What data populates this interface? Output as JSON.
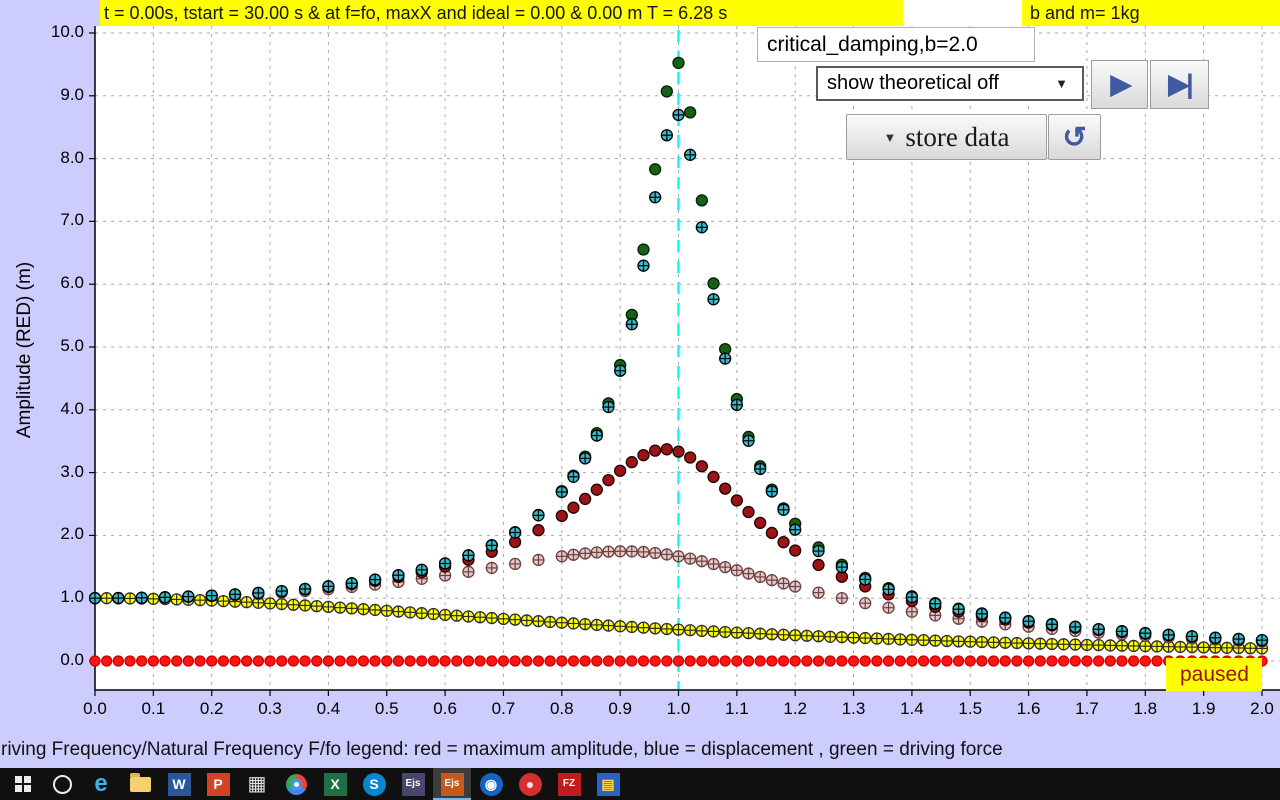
{
  "app": {
    "title_bar_left": "t = 0.00s, tstart = 30.00 s & at f=fo, maxX and ideal = 0.00 & 0.00 m T = 6.28 s",
    "title_bar_right": "b and m= 1kg",
    "run_label": "critical_damping,b=2.0"
  },
  "controls": {
    "dropdown_value": "show theoretical off",
    "dropdown_arrow_icon": "▼",
    "play_icon": "▶",
    "step_icon": "▶|",
    "store_label": "store data",
    "store_arrow_icon": "▼",
    "undo_icon": "↺",
    "paused_label": "paused"
  },
  "chart": {
    "ylabel": "Amplitude (RED) (m)",
    "legend_text": "riving Frequency/Natural Frequency F/fo legend: red = maximum amplitude, blue = displacement , green = driving force",
    "y_ticks": [
      "0.0",
      "1.0",
      "2.0",
      "3.0",
      "4.0",
      "5.0",
      "6.0",
      "7.0",
      "8.0",
      "9.0",
      "10.0"
    ],
    "x_ticks": [
      "0.0",
      "0.1",
      "0.2",
      "0.3",
      "0.4",
      "0.5",
      "0.6",
      "0.7",
      "0.8",
      "0.9",
      "1.0",
      "1.1",
      "1.2",
      "1.3",
      "1.4",
      "1.5",
      "1.6",
      "1.7",
      "1.8",
      "1.9",
      "2.0"
    ]
  },
  "chart_data": {
    "type": "scatter",
    "xlabel": "Driving Frequency/Natural Frequency F/fo",
    "ylabel": "Amplitude (RED) (m)",
    "xlim": [
      0,
      2.0
    ],
    "ylim": [
      0,
      10.0
    ],
    "x_tick_step": 0.1,
    "y_tick_step": 1.0,
    "grid": "dashed",
    "resonance_marker_x": 1.0,
    "reference_line_color": "#00ffff",
    "x_peak_grid": [
      0,
      0.04,
      0.08,
      0.12,
      0.16,
      0.2,
      0.24,
      0.28,
      0.32,
      0.36,
      0.4,
      0.44,
      0.48,
      0.52,
      0.56,
      0.6,
      0.64,
      0.68,
      0.72,
      0.76,
      0.8,
      0.82,
      0.84,
      0.86,
      0.88,
      0.9,
      0.92,
      0.94,
      0.96,
      0.98,
      1,
      1.02,
      1.04,
      1.06,
      1.08,
      1.1,
      1.12,
      1.14,
      1.16,
      1.18,
      1.2,
      1.24,
      1.28,
      1.32,
      1.36,
      1.4,
      1.44,
      1.48,
      1.52,
      1.56,
      1.6,
      1.64,
      1.68,
      1.72,
      1.76,
      1.8,
      1.84,
      1.88,
      1.92,
      1.96,
      2
    ],
    "series": [
      {
        "id": "yellow",
        "label": "stored amplitude curve (critical damping b=2.0)",
        "marker": "circle-cross",
        "fill": "#ffff00",
        "stroke": "#2d2d2d",
        "radius": 5.5,
        "x_start": 0,
        "x_step": 0.02,
        "count": 101,
        "y": [
          1.0,
          1.0,
          0.998,
          0.996,
          0.994,
          0.99,
          0.986,
          0.981,
          0.975,
          0.969,
          0.962,
          0.954,
          0.946,
          0.937,
          0.927,
          0.917,
          0.907,
          0.896,
          0.885,
          0.874,
          0.862,
          0.85,
          0.838,
          0.825,
          0.813,
          0.8,
          0.787,
          0.774,
          0.761,
          0.748,
          0.735,
          0.722,
          0.709,
          0.697,
          0.684,
          0.671,
          0.659,
          0.646,
          0.634,
          0.622,
          0.61,
          0.598,
          0.586,
          0.575,
          0.564,
          0.552,
          0.542,
          0.531,
          0.52,
          0.51,
          0.5,
          0.49,
          0.48,
          0.471,
          0.462,
          0.452,
          0.444,
          0.435,
          0.426,
          0.418,
          0.41,
          0.402,
          0.394,
          0.386,
          0.379,
          0.372,
          0.365,
          0.358,
          0.351,
          0.344,
          0.338,
          0.332,
          0.325,
          0.319,
          0.313,
          0.308,
          0.302,
          0.297,
          0.291,
          0.286,
          0.281,
          0.276,
          0.271,
          0.266,
          0.262,
          0.257,
          0.253,
          0.248,
          0.244,
          0.24,
          0.236,
          0.232,
          0.228,
          0.224,
          0.221,
          0.217,
          0.213,
          0.21,
          0.207,
          0.203,
          0.2
        ]
      },
      {
        "id": "plum",
        "label": "stored amplitude curve (b=0.6)",
        "marker": "circle-cross",
        "fill": "#e3caca",
        "stroke": "#6d4040",
        "radius": 5.5,
        "x_ref": "x_peak_grid",
        "y": [
          1.0,
          1.001,
          1.005,
          1.012,
          1.021,
          1.034,
          1.049,
          1.067,
          1.089,
          1.115,
          1.145,
          1.179,
          1.217,
          1.26,
          1.309,
          1.362,
          1.42,
          1.482,
          1.546,
          1.609,
          1.667,
          1.692,
          1.713,
          1.73,
          1.742,
          1.747,
          1.745,
          1.737,
          1.72,
          1.697,
          1.667,
          1.63,
          1.589,
          1.544,
          1.495,
          1.444,
          1.392,
          1.339,
          1.287,
          1.235,
          1.185,
          1.089,
          1.001,
          0.921,
          0.849,
          0.784,
          0.726,
          0.673,
          0.626,
          0.584,
          0.546,
          0.511,
          0.48,
          0.452,
          0.426,
          0.402,
          0.38,
          0.36,
          0.342,
          0.325,
          0.31
        ]
      },
      {
        "id": "darkred",
        "label": "stored amplitude curve (b=0.3)",
        "marker": "dot",
        "fill": "#9a1515",
        "stroke": "#240000",
        "radius": 5.5,
        "x_ref": "x_peak_grid",
        "y": [
          1.0,
          1.002,
          1.006,
          1.014,
          1.025,
          1.04,
          1.058,
          1.081,
          1.108,
          1.14,
          1.179,
          1.224,
          1.277,
          1.34,
          1.415,
          1.504,
          1.611,
          1.739,
          1.895,
          2.083,
          2.311,
          2.441,
          2.581,
          2.728,
          2.88,
          3.029,
          3.166,
          3.278,
          3.35,
          3.371,
          3.333,
          3.24,
          3.101,
          2.931,
          2.745,
          2.557,
          2.373,
          2.199,
          2.039,
          1.892,
          1.759,
          1.53,
          1.342,
          1.188,
          1.061,
          0.954,
          0.864,
          0.787,
          0.721,
          0.663,
          0.613,
          0.568,
          0.529,
          0.494,
          0.462,
          0.434,
          0.408,
          0.385,
          0.364,
          0.345,
          0.327
        ]
      },
      {
        "id": "green",
        "label": "driving force (green)",
        "marker": "dot",
        "fill": "#176117",
        "stroke": "#041f04",
        "radius": 5.5,
        "x_ref": "x_peak_grid",
        "y": [
          1.0,
          1.002,
          1.006,
          1.015,
          1.026,
          1.041,
          1.061,
          1.085,
          1.113,
          1.148,
          1.189,
          1.238,
          1.297,
          1.367,
          1.452,
          1.555,
          1.683,
          1.844,
          2.051,
          2.326,
          2.705,
          2.952,
          3.254,
          3.628,
          4.102,
          4.712,
          5.511,
          6.553,
          7.83,
          9.07,
          9.524,
          8.736,
          7.335,
          6.012,
          4.966,
          4.172,
          3.568,
          3.1,
          2.729,
          2.43,
          2.185,
          1.808,
          1.533,
          1.324,
          1.161,
          1.03,
          0.922,
          0.833,
          0.758,
          0.693,
          0.637,
          0.589,
          0.546,
          0.508,
          0.475,
          0.445,
          0.418,
          0.393,
          0.371,
          0.351,
          0.333
        ]
      },
      {
        "id": "cyan",
        "label": "displacement (blue)",
        "marker": "circle-cross",
        "fill": "#38bccc",
        "stroke": "#000000",
        "radius": 5.5,
        "x_ref": "x_peak_grid",
        "y": [
          1.0,
          1.002,
          1.006,
          1.014,
          1.026,
          1.041,
          1.061,
          1.084,
          1.113,
          1.147,
          1.189,
          1.238,
          1.296,
          1.366,
          1.451,
          1.553,
          1.681,
          1.841,
          2.046,
          2.32,
          2.691,
          2.933,
          3.227,
          3.59,
          4.044,
          4.622,
          5.362,
          6.295,
          7.384,
          8.372,
          8.696,
          8.06,
          6.906,
          5.76,
          4.816,
          4.079,
          3.507,
          3.058,
          2.699,
          2.408,
          2.092,
          1.751,
          1.495,
          1.298,
          1.142,
          1.016,
          0.912,
          0.825,
          0.751,
          0.688,
          0.633,
          0.585,
          0.543,
          0.506,
          0.473,
          0.443,
          0.416,
          0.392,
          0.37,
          0.35,
          0.332
        ]
      },
      {
        "id": "red",
        "label": "maximum amplitude (red, current run t=0)",
        "marker": "dot",
        "fill": "#ff1414",
        "stroke": "#cc0000",
        "radius": 5,
        "x_start": 0,
        "x_step": 0.02,
        "count": 101,
        "y_const": 0
      }
    ]
  },
  "taskbar": {
    "items": [
      {
        "name": "start-button",
        "shape": "win"
      },
      {
        "name": "search-button",
        "shape": "ring"
      },
      {
        "name": "edge-browser",
        "glyph": "e",
        "fg": "#41b0e8",
        "size": 24,
        "bold": true
      },
      {
        "name": "file-explorer",
        "shape": "folder"
      },
      {
        "name": "word-app",
        "glyph": "W",
        "bg": "#2b579a"
      },
      {
        "name": "powerpoint-app",
        "glyph": "P",
        "bg": "#d04423"
      },
      {
        "name": "apps-grid",
        "glyph": "▦",
        "fg": "#e0e0e0",
        "size": 20
      },
      {
        "name": "chrome-browser",
        "shape": "chrome"
      },
      {
        "name": "excel-app",
        "glyph": "X",
        "bg": "#1e7145"
      },
      {
        "name": "skype-app",
        "glyph": "S",
        "bg": "#0b86d0",
        "round": true
      },
      {
        "name": "ejs-console",
        "glyph": "Ejs",
        "bg": "#47476b",
        "small": true
      },
      {
        "name": "ejs-simulation",
        "glyph": "Ejs",
        "bg": "#c4591c",
        "small": true,
        "active": true
      },
      {
        "name": "media-app",
        "glyph": "◉",
        "bg": "#1565c0",
        "round": true
      },
      {
        "name": "red-app",
        "glyph": "●",
        "bg": "#d32f2f",
        "round": true,
        "fg": "#ffdddd"
      },
      {
        "name": "filezilla-app",
        "glyph": "FZ",
        "bg": "#bf1d1d",
        "small": true
      },
      {
        "name": "blue-app",
        "glyph": "▤",
        "bg": "#2b62c4",
        "fg": "#ffd54f"
      }
    ]
  }
}
